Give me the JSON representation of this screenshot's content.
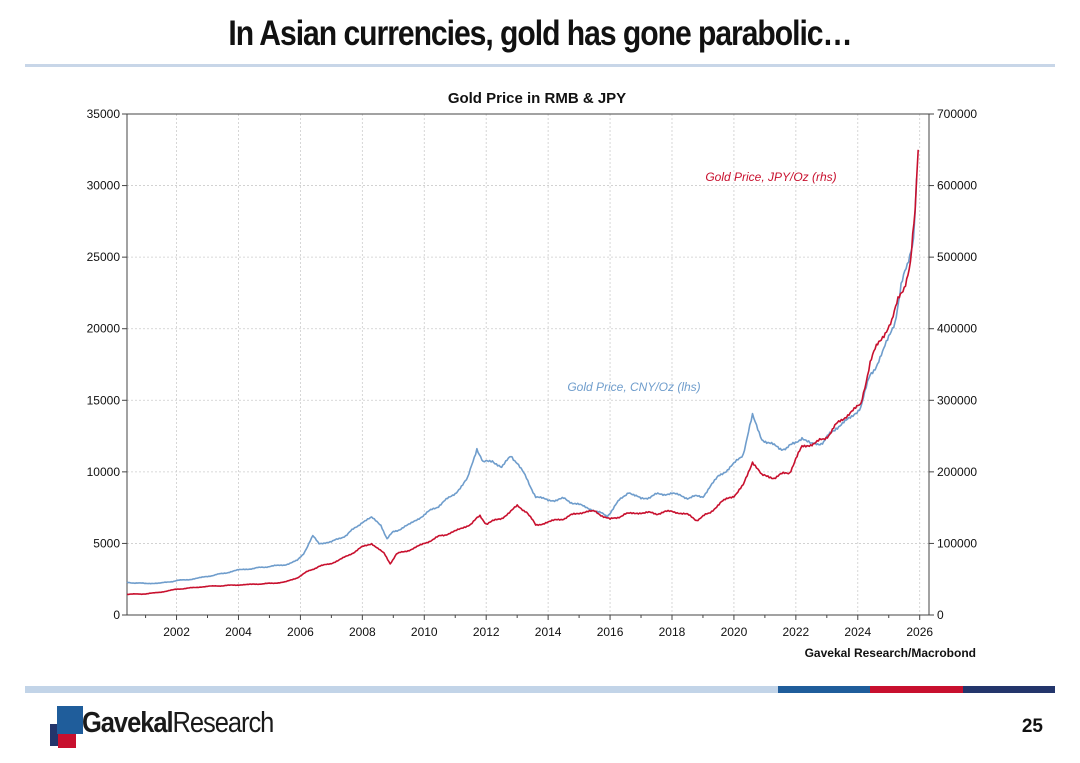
{
  "slide": {
    "title": "In Asian currencies, gold has gone parabolic…",
    "page_number": "25",
    "brand_bold": "Gavekal",
    "brand_regular": "Research",
    "colors": {
      "rule": "#c8d6e8",
      "bar_light": "#c2d4e8",
      "bar_blue": "#1f5d9b",
      "bar_red": "#c8102e",
      "bar_navy": "#23356b"
    }
  },
  "chart_data": {
    "type": "line",
    "title": "Gold Price in RMB & JPY",
    "source": "Gavekal Research/Macrobond",
    "xlabel": "",
    "ylabel_left": "",
    "ylabel_right": "",
    "x_ticks": [
      "2002",
      "2004",
      "2006",
      "2008",
      "2010",
      "2012",
      "2014",
      "2016",
      "2018",
      "2020",
      "2022",
      "2024",
      "2026"
    ],
    "left_ticks": [
      "0",
      "5000",
      "10000",
      "15000",
      "20000",
      "25000",
      "30000",
      "35000"
    ],
    "right_ticks": [
      "0",
      "100000",
      "200000",
      "300000",
      "400000",
      "500000",
      "600000",
      "700000"
    ],
    "xlim": [
      2000.4,
      2026.3
    ],
    "ylim_left": [
      0,
      35000
    ],
    "ylim_right": [
      0,
      700000
    ],
    "grid": true,
    "series": [
      {
        "name": "Gold Price, CNY/Oz (lhs)",
        "axis": "left",
        "color": "#6f9dcc",
        "points": [
          [
            2000.4,
            2280
          ],
          [
            2001.0,
            2200
          ],
          [
            2001.5,
            2230
          ],
          [
            2002.0,
            2400
          ],
          [
            2002.5,
            2500
          ],
          [
            2003.0,
            2700
          ],
          [
            2003.5,
            2900
          ],
          [
            2004.0,
            3150
          ],
          [
            2004.5,
            3250
          ],
          [
            2005.0,
            3400
          ],
          [
            2005.5,
            3500
          ],
          [
            2005.9,
            3800
          ],
          [
            2006.1,
            4300
          ],
          [
            2006.4,
            5500
          ],
          [
            2006.6,
            5000
          ],
          [
            2007.0,
            5100
          ],
          [
            2007.5,
            5600
          ],
          [
            2008.0,
            6500
          ],
          [
            2008.3,
            6800
          ],
          [
            2008.6,
            6300
          ],
          [
            2008.8,
            5300
          ],
          [
            2009.0,
            5800
          ],
          [
            2009.5,
            6300
          ],
          [
            2010.0,
            7000
          ],
          [
            2010.5,
            7700
          ],
          [
            2011.0,
            8500
          ],
          [
            2011.4,
            9500
          ],
          [
            2011.7,
            11700
          ],
          [
            2011.9,
            10600
          ],
          [
            2012.2,
            10800
          ],
          [
            2012.5,
            10300
          ],
          [
            2012.8,
            11100
          ],
          [
            2013.0,
            10700
          ],
          [
            2013.3,
            9500
          ],
          [
            2013.6,
            8300
          ],
          [
            2014.0,
            8000
          ],
          [
            2014.5,
            8100
          ],
          [
            2015.0,
            7700
          ],
          [
            2015.5,
            7300
          ],
          [
            2015.9,
            6900
          ],
          [
            2016.3,
            8000
          ],
          [
            2016.6,
            8600
          ],
          [
            2017.0,
            8100
          ],
          [
            2017.5,
            8400
          ],
          [
            2018.0,
            8500
          ],
          [
            2018.5,
            8200
          ],
          [
            2019.0,
            8300
          ],
          [
            2019.5,
            9700
          ],
          [
            2020.0,
            10500
          ],
          [
            2020.3,
            11300
          ],
          [
            2020.6,
            13900
          ],
          [
            2020.9,
            12300
          ],
          [
            2021.3,
            11800
          ],
          [
            2021.7,
            11600
          ],
          [
            2022.2,
            12400
          ],
          [
            2022.5,
            11900
          ],
          [
            2022.9,
            12100
          ],
          [
            2023.3,
            13100
          ],
          [
            2023.8,
            13800
          ],
          [
            2024.1,
            14600
          ],
          [
            2024.4,
            16700
          ],
          [
            2024.8,
            18300
          ],
          [
            2025.2,
            20500
          ],
          [
            2025.4,
            23000
          ],
          [
            2025.6,
            24300
          ],
          [
            2025.8,
            26500
          ],
          [
            2025.9,
            30500
          ]
        ]
      },
      {
        "name": "Gold Price, JPY/Oz (rhs)",
        "axis": "right",
        "color": "#c8102e",
        "points": [
          [
            2000.4,
            29000
          ],
          [
            2001.0,
            29500
          ],
          [
            2001.5,
            32000
          ],
          [
            2002.0,
            36000
          ],
          [
            2002.5,
            38000
          ],
          [
            2003.0,
            40000
          ],
          [
            2003.5,
            41000
          ],
          [
            2004.0,
            42000
          ],
          [
            2004.5,
            43000
          ],
          [
            2005.0,
            44000
          ],
          [
            2005.5,
            46000
          ],
          [
            2005.9,
            52000
          ],
          [
            2006.2,
            60000
          ],
          [
            2006.6,
            68000
          ],
          [
            2007.0,
            72000
          ],
          [
            2007.5,
            82000
          ],
          [
            2008.0,
            95000
          ],
          [
            2008.3,
            100000
          ],
          [
            2008.7,
            86000
          ],
          [
            2008.9,
            72000
          ],
          [
            2009.1,
            85000
          ],
          [
            2009.6,
            92000
          ],
          [
            2010.0,
            100000
          ],
          [
            2010.5,
            110000
          ],
          [
            2011.0,
            117000
          ],
          [
            2011.5,
            127000
          ],
          [
            2011.8,
            138000
          ],
          [
            2012.0,
            128000
          ],
          [
            2012.5,
            135000
          ],
          [
            2013.0,
            152000
          ],
          [
            2013.3,
            145000
          ],
          [
            2013.6,
            125000
          ],
          [
            2014.0,
            130000
          ],
          [
            2014.5,
            135000
          ],
          [
            2015.0,
            143000
          ],
          [
            2015.5,
            145000
          ],
          [
            2016.0,
            133000
          ],
          [
            2016.5,
            141000
          ],
          [
            2017.0,
            143000
          ],
          [
            2017.5,
            142000
          ],
          [
            2018.0,
            145000
          ],
          [
            2018.5,
            140000
          ],
          [
            2018.8,
            133000
          ],
          [
            2019.2,
            142000
          ],
          [
            2019.6,
            158000
          ],
          [
            2020.0,
            167000
          ],
          [
            2020.3,
            180000
          ],
          [
            2020.6,
            215000
          ],
          [
            2020.9,
            195000
          ],
          [
            2021.3,
            192000
          ],
          [
            2021.8,
            200000
          ],
          [
            2022.2,
            235000
          ],
          [
            2022.6,
            240000
          ],
          [
            2022.9,
            245000
          ],
          [
            2023.3,
            265000
          ],
          [
            2023.8,
            285000
          ],
          [
            2024.1,
            293000
          ],
          [
            2024.4,
            355000
          ],
          [
            2024.8,
            390000
          ],
          [
            2025.1,
            410000
          ],
          [
            2025.3,
            440000
          ],
          [
            2025.5,
            460000
          ],
          [
            2025.7,
            490000
          ],
          [
            2025.85,
            560000
          ],
          [
            2025.95,
            650000
          ]
        ]
      }
    ]
  }
}
